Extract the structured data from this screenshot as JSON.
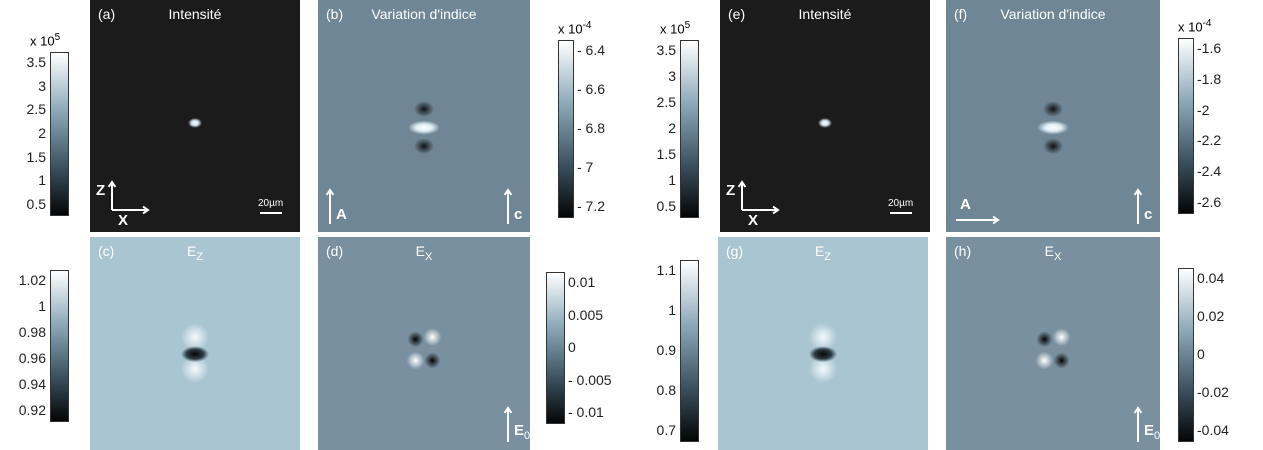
{
  "panels": [
    {
      "label": "(a)",
      "title": "Intensité",
      "annotations": {
        "z": "Z",
        "x": "X",
        "scale": "20µm"
      }
    },
    {
      "label": "(b)",
      "title": "Variation d'indice",
      "annotations": {
        "a": "A",
        "c": "c"
      }
    },
    {
      "label": "(c)",
      "title": "E",
      "title_sub": "Z"
    },
    {
      "label": "(d)",
      "title": "E",
      "title_sub": "X",
      "annotations": {
        "e": "E",
        "e_sub": "0"
      }
    },
    {
      "label": "(e)",
      "title": "Intensité",
      "annotations": {
        "z": "Z",
        "x": "X",
        "scale": "20µm"
      }
    },
    {
      "label": "(f)",
      "title": "Variation d'indice",
      "annotations": {
        "a": "A",
        "c": "c"
      }
    },
    {
      "label": "(g)",
      "title": "E",
      "title_sub": "Z"
    },
    {
      "label": "(h)",
      "title": "E",
      "title_sub": "X",
      "annotations": {
        "e": "E",
        "e_sub": "0"
      }
    }
  ],
  "colorbars": [
    {
      "multiplier": "x 10",
      "power": "5",
      "ticks": [
        "3.5",
        "3",
        "2.5",
        "2",
        "1.5",
        "1",
        "0.5"
      ]
    },
    {
      "multiplier": "x 10",
      "power": "-4",
      "ticks": [
        "- 6.4",
        "- 6.6",
        "- 6.8",
        "- 7",
        "- 7.2"
      ]
    },
    {
      "ticks": [
        "1.02",
        "1",
        "0.98",
        "0.96",
        "0.94",
        "0.92"
      ]
    },
    {
      "ticks": [
        "0.01",
        "0.005",
        "0",
        "- 0.005",
        "- 0.01"
      ]
    },
    {
      "multiplier": "x 10",
      "power": "5",
      "ticks": [
        "3.5",
        "3",
        "2.5",
        "2",
        "1.5",
        "1",
        "0.5"
      ]
    },
    {
      "multiplier": "x 10",
      "power": "-4",
      "ticks": [
        "-1.6",
        "-1.8",
        "-2",
        "-2.2",
        "-2.4",
        "-2.6"
      ]
    },
    {
      "ticks": [
        "1.1",
        "1",
        "0.9",
        "0.8",
        "0.7"
      ]
    },
    {
      "ticks": [
        "0.04",
        "0.02",
        "0",
        "-0.02",
        "-0.04"
      ]
    }
  ]
}
